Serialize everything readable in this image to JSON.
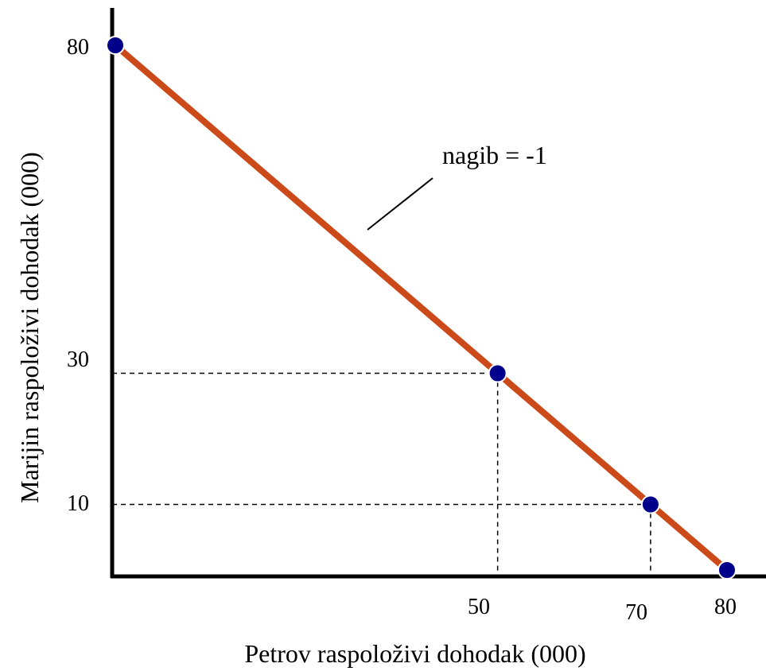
{
  "chart_data": {
    "type": "line",
    "title": "",
    "xlabel": "Petrov raspoloživi dohodak (000)",
    "ylabel": "Marijin raspoloživi dohodak (000)",
    "xlim": [
      0,
      80
    ],
    "ylim": [
      0,
      80
    ],
    "x_ticks": [
      "50",
      "70",
      "80"
    ],
    "y_ticks": [
      "80",
      "30",
      "10"
    ],
    "grid": false,
    "series": [
      {
        "x": [
          0,
          50,
          70,
          80
        ],
        "y": [
          80,
          30,
          10,
          0
        ]
      }
    ],
    "guides": [
      {
        "x": 50,
        "y": 30
      },
      {
        "x": 70,
        "y": 10
      }
    ],
    "annotation": "nagib = -1",
    "colors": {
      "line": "#cc4a1a",
      "points": "#00008b",
      "axes": "#000000"
    }
  }
}
